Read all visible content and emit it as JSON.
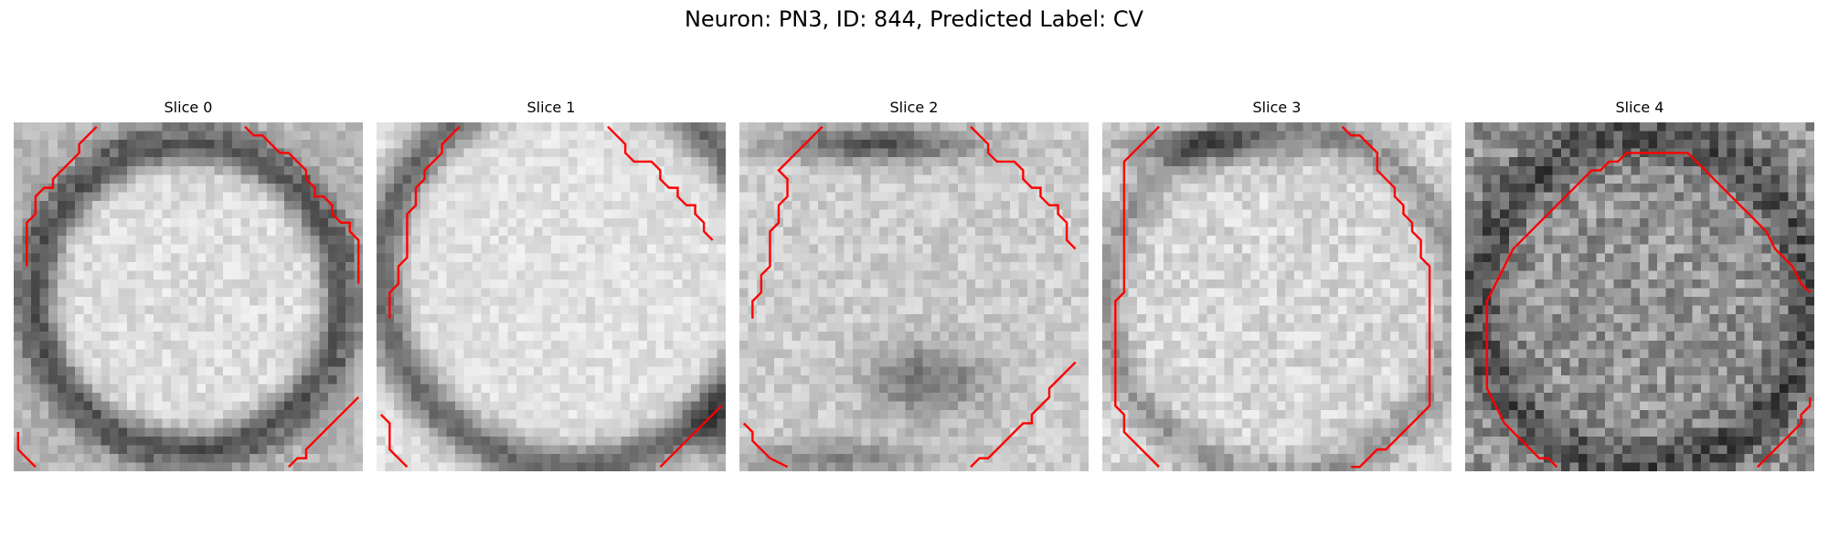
{
  "figure": {
    "title": "Neuron: PN3, ID: 844, Predicted Label: CV",
    "contour_color": "#ff0000"
  },
  "slices": [
    {
      "title": "Slice 0",
      "image_description": "grayscale microscopy cross-section with dark circular membrane ring around bright center",
      "contours": [
        [
          [
            1,
            16
          ],
          [
            1,
            11
          ],
          [
            2,
            10
          ],
          [
            2,
            8
          ],
          [
            3,
            7
          ],
          [
            4,
            7
          ],
          [
            4,
            6
          ],
          [
            5,
            5
          ],
          [
            6,
            4
          ],
          [
            7,
            3
          ],
          [
            7,
            2
          ],
          [
            8,
            1
          ],
          [
            9,
            0
          ]
        ],
        [
          [
            26,
            0
          ],
          [
            27,
            1
          ],
          [
            28,
            1
          ],
          [
            29,
            2
          ],
          [
            30,
            3
          ],
          [
            31,
            3
          ],
          [
            32,
            4
          ],
          [
            33,
            5
          ],
          [
            33,
            6
          ],
          [
            34,
            7
          ],
          [
            34,
            8
          ],
          [
            35,
            8
          ],
          [
            36,
            9
          ],
          [
            36,
            10
          ],
          [
            37,
            11
          ],
          [
            38,
            11
          ],
          [
            38,
            12
          ],
          [
            39,
            13
          ],
          [
            39,
            18
          ]
        ],
        [
          [
            0,
            35
          ],
          [
            0,
            37
          ],
          [
            1,
            38
          ],
          [
            2,
            39
          ]
        ],
        [
          [
            31,
            39
          ],
          [
            32,
            38
          ],
          [
            33,
            38
          ],
          [
            33,
            37
          ],
          [
            34,
            36
          ],
          [
            35,
            35
          ],
          [
            36,
            34
          ],
          [
            37,
            33
          ],
          [
            38,
            32
          ],
          [
            39,
            31
          ]
        ]
      ]
    },
    {
      "title": "Slice 1",
      "image_description": "grayscale microscopy cross-section with bright soma and dark membrane along upper-left and lower edges",
      "contours": [
        [
          [
            1,
            22
          ],
          [
            1,
            19
          ],
          [
            2,
            18
          ],
          [
            2,
            16
          ],
          [
            3,
            15
          ],
          [
            3,
            10
          ],
          [
            4,
            9
          ],
          [
            4,
            7
          ],
          [
            5,
            6
          ],
          [
            5,
            5
          ],
          [
            6,
            4
          ],
          [
            7,
            3
          ],
          [
            7,
            2
          ],
          [
            8,
            1
          ],
          [
            9,
            0
          ]
        ],
        [
          [
            26,
            0
          ],
          [
            27,
            1
          ],
          [
            28,
            2
          ],
          [
            28,
            3
          ],
          [
            29,
            4
          ],
          [
            30,
            4
          ],
          [
            31,
            4
          ],
          [
            32,
            5
          ],
          [
            32,
            6
          ],
          [
            33,
            7
          ],
          [
            34,
            7
          ],
          [
            34,
            8
          ],
          [
            35,
            9
          ],
          [
            36,
            9
          ],
          [
            36,
            10
          ],
          [
            37,
            11
          ],
          [
            37,
            12
          ],
          [
            38,
            13
          ]
        ],
        [
          [
            0,
            33
          ],
          [
            1,
            34
          ],
          [
            1,
            37
          ],
          [
            2,
            38
          ],
          [
            3,
            39
          ]
        ],
        [
          [
            32,
            39
          ],
          [
            33,
            38
          ],
          [
            34,
            37
          ],
          [
            35,
            36
          ],
          [
            36,
            35
          ],
          [
            37,
            34
          ],
          [
            38,
            33
          ],
          [
            39,
            32
          ]
        ]
      ]
    },
    {
      "title": "Slice 2",
      "image_description": "grayscale microscopy cross-section with dark band at top and dark blob in lower center",
      "contours": [
        [
          [
            1,
            22
          ],
          [
            1,
            20
          ],
          [
            2,
            19
          ],
          [
            2,
            17
          ],
          [
            3,
            16
          ],
          [
            3,
            12
          ],
          [
            4,
            11
          ],
          [
            4,
            9
          ],
          [
            5,
            8
          ],
          [
            5,
            6
          ],
          [
            4,
            5
          ],
          [
            5,
            4
          ],
          [
            6,
            3
          ],
          [
            7,
            2
          ],
          [
            8,
            1
          ],
          [
            9,
            0
          ]
        ],
        [
          [
            26,
            0
          ],
          [
            27,
            1
          ],
          [
            28,
            2
          ],
          [
            28,
            3
          ],
          [
            29,
            4
          ],
          [
            30,
            4
          ],
          [
            31,
            4
          ],
          [
            32,
            5
          ],
          [
            32,
            6
          ],
          [
            33,
            7
          ],
          [
            34,
            7
          ],
          [
            34,
            8
          ],
          [
            35,
            9
          ],
          [
            36,
            9
          ],
          [
            36,
            10
          ],
          [
            37,
            11
          ],
          [
            37,
            13
          ],
          [
            38,
            14
          ]
        ],
        [
          [
            0,
            34
          ],
          [
            1,
            35
          ],
          [
            1,
            36
          ],
          [
            2,
            37
          ],
          [
            3,
            38
          ],
          [
            5,
            39
          ]
        ],
        [
          [
            26,
            39
          ],
          [
            27,
            38
          ],
          [
            28,
            38
          ],
          [
            29,
            37
          ],
          [
            30,
            36
          ],
          [
            31,
            35
          ],
          [
            32,
            34
          ],
          [
            33,
            34
          ],
          [
            33,
            33
          ],
          [
            34,
            32
          ],
          [
            35,
            31
          ],
          [
            35,
            30
          ],
          [
            36,
            29
          ],
          [
            37,
            28
          ],
          [
            38,
            27
          ]
        ]
      ]
    },
    {
      "title": "Slice 3",
      "image_description": "grayscale microscopy cross-section with dark membrane along left and right, mostly bright interior",
      "contours": [
        [
          [
            6,
            39
          ],
          [
            4,
            37
          ],
          [
            3,
            36
          ],
          [
            2,
            35
          ],
          [
            2,
            33
          ],
          [
            1,
            32
          ],
          [
            1,
            20
          ],
          [
            2,
            19
          ],
          [
            2,
            4
          ],
          [
            3,
            3
          ],
          [
            4,
            2
          ],
          [
            5,
            1
          ],
          [
            6,
            0
          ]
        ],
        [
          [
            27,
            0
          ],
          [
            28,
            1
          ],
          [
            29,
            1
          ],
          [
            30,
            2
          ],
          [
            31,
            3
          ],
          [
            31,
            5
          ],
          [
            32,
            6
          ],
          [
            33,
            7
          ],
          [
            33,
            8
          ],
          [
            34,
            9
          ],
          [
            34,
            10
          ],
          [
            35,
            11
          ],
          [
            35,
            12
          ],
          [
            36,
            13
          ],
          [
            36,
            15
          ],
          [
            37,
            16
          ],
          [
            37,
            32
          ],
          [
            36,
            33
          ],
          [
            35,
            34
          ],
          [
            34,
            35
          ],
          [
            33,
            36
          ],
          [
            32,
            37
          ],
          [
            31,
            37
          ],
          [
            30,
            38
          ],
          [
            29,
            39
          ],
          [
            28,
            39
          ]
        ]
      ]
    },
    {
      "title": "Slice 4",
      "image_description": "noisy grayscale microscopy cross-section with dark textured membrane ring on left and bottom",
      "contours": [
        [
          [
            10,
            39
          ],
          [
            9,
            38
          ],
          [
            8,
            38
          ],
          [
            7,
            37
          ],
          [
            6,
            36
          ],
          [
            5,
            35
          ],
          [
            4,
            34
          ],
          [
            3,
            32
          ],
          [
            2,
            30
          ],
          [
            2,
            20
          ],
          [
            3,
            18
          ],
          [
            4,
            16
          ],
          [
            5,
            14
          ],
          [
            6,
            13
          ],
          [
            7,
            12
          ],
          [
            8,
            11
          ],
          [
            9,
            10
          ],
          [
            10,
            9
          ],
          [
            11,
            8
          ],
          [
            12,
            7
          ],
          [
            13,
            6
          ],
          [
            14,
            5
          ],
          [
            15,
            5
          ],
          [
            16,
            4
          ],
          [
            17,
            4
          ],
          [
            18,
            3
          ],
          [
            19,
            3
          ],
          [
            20,
            3
          ],
          [
            21,
            3
          ],
          [
            22,
            3
          ],
          [
            23,
            3
          ],
          [
            24,
            3
          ],
          [
            25,
            3
          ],
          [
            26,
            4
          ],
          [
            27,
            5
          ],
          [
            28,
            6
          ],
          [
            29,
            7
          ],
          [
            30,
            8
          ],
          [
            31,
            9
          ],
          [
            32,
            10
          ],
          [
            33,
            11
          ],
          [
            34,
            12
          ],
          [
            35,
            14
          ],
          [
            36,
            15
          ],
          [
            37,
            16
          ],
          [
            38,
            18
          ],
          [
            39,
            19
          ]
        ],
        [
          [
            33,
            39
          ],
          [
            34,
            38
          ],
          [
            35,
            37
          ],
          [
            36,
            36
          ],
          [
            37,
            35
          ],
          [
            38,
            34
          ],
          [
            38,
            33
          ],
          [
            39,
            32
          ],
          [
            39,
            31
          ]
        ]
      ]
    }
  ]
}
